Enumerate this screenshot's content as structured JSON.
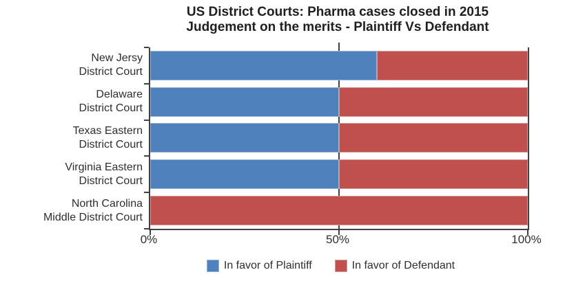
{
  "title": {
    "line1": "US District Courts: Pharma cases closed in 2015",
    "line2": "Judgement on the merits - Plaintiff Vs Defendant"
  },
  "chart_data": {
    "type": "bar",
    "orientation": "horizontal",
    "stacked": true,
    "title": "US District Courts: Pharma cases closed in 2015 Judgement on the merits - Plaintiff Vs Defendant",
    "categories": [
      {
        "line1": "New Jersy",
        "line2": "District Court"
      },
      {
        "line1": "Delaware",
        "line2": "District Court"
      },
      {
        "line1": "Texas Eastern",
        "line2": "District Court"
      },
      {
        "line1": "Virginia Eastern",
        "line2": "District Court"
      },
      {
        "line1": "North Carolina",
        "line2": "Middle District Court"
      }
    ],
    "series": [
      {
        "name": "In favor of Plaintiff",
        "color": "#4F81BD",
        "border_color": "#95B3D7",
        "values": [
          60,
          50,
          50,
          50,
          0
        ]
      },
      {
        "name": "In favor of Defendant",
        "color": "#C0504D",
        "border_color": "#D99694",
        "values": [
          40,
          50,
          50,
          50,
          100
        ]
      }
    ],
    "x_ticks": [
      {
        "label": "0%",
        "value": 0
      },
      {
        "label": "50%",
        "value": 50
      },
      {
        "label": "100%",
        "value": 100
      }
    ],
    "xlim": [
      0,
      100
    ],
    "gridline_values": [
      50
    ],
    "axis_color": "#404040",
    "legend_position": "bottom",
    "grid": "x-at-50-only"
  }
}
